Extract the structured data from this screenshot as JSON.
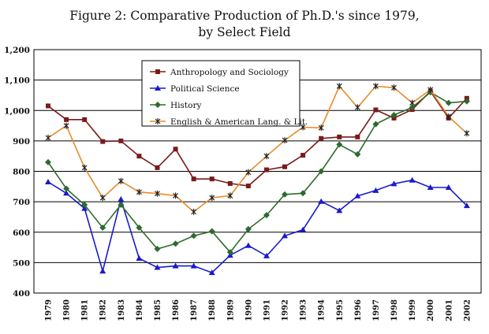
{
  "title_line1": "Figure 2: Comparative Production of Ph.D.'s since 1979,",
  "title_line2": "by Select Field",
  "chart_data": {
    "type": "line",
    "x": [
      "1979",
      "1980",
      "1981",
      "1982",
      "1983",
      "1984",
      "1985",
      "1986",
      "1987",
      "1988",
      "1989",
      "1990",
      "1991",
      "1992",
      "1993",
      "1994",
      "1995",
      "1996",
      "1997",
      "1998",
      "1999",
      "2000",
      "2001",
      "2002"
    ],
    "ylim": [
      400,
      1200
    ],
    "yticks": [
      "400",
      "500",
      "600",
      "700",
      "800",
      "900",
      "1,000",
      "1,100",
      "1,200"
    ],
    "grid": "horizontal",
    "legend_position": "top-left inside plot",
    "series": [
      {
        "name": "Anthropology and Sociology",
        "color": "#7a1a1a",
        "marker": "square",
        "values": [
          1015,
          970,
          970,
          898,
          900,
          850,
          812,
          873,
          775,
          775,
          760,
          752,
          805,
          815,
          853,
          908,
          913,
          913,
          1002,
          975,
          1003,
          1063,
          975,
          1040
        ]
      },
      {
        "name": "Political Science",
        "color": "#1a1acc",
        "marker": "triangle",
        "values": [
          765,
          728,
          678,
          472,
          708,
          514,
          484,
          489,
          489,
          467,
          524,
          556,
          522,
          588,
          608,
          701,
          671,
          719,
          737,
          759,
          771,
          747,
          747,
          687
        ]
      },
      {
        "name": "History",
        "color": "#2d6b2d",
        "marker": "diamond",
        "values": [
          830,
          743,
          690,
          615,
          690,
          615,
          545,
          562,
          588,
          603,
          534,
          610,
          656,
          724,
          728,
          800,
          888,
          856,
          955,
          985,
          1010,
          1060,
          1025,
          1030
        ]
      },
      {
        "name": "English & American Lang. & Lit.",
        "color": "#e88a2a",
        "marker": "star",
        "values": [
          910,
          950,
          812,
          713,
          768,
          732,
          727,
          720,
          667,
          713,
          720,
          797,
          850,
          902,
          945,
          943,
          1080,
          1010,
          1080,
          1075,
          1025,
          1068,
          980,
          925
        ]
      }
    ]
  }
}
